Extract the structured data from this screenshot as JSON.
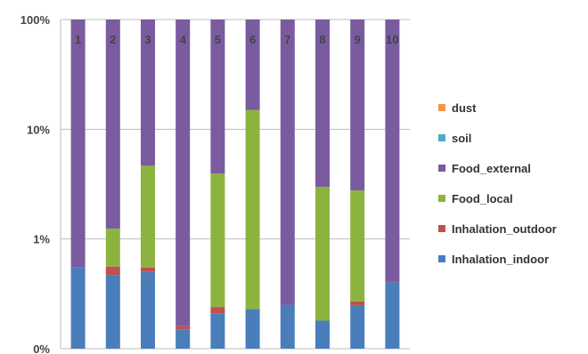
{
  "chart_data": {
    "type": "bar",
    "stacked": true,
    "y_scale": "log",
    "ylim": [
      "0%",
      "100%"
    ],
    "y_ticks": [
      "100%",
      "10%",
      "1%",
      "0%"
    ],
    "grid": true,
    "legend_position": "right",
    "categories": [
      "1",
      "2",
      "3",
      "4",
      "5",
      "6",
      "7",
      "8",
      "9",
      "10"
    ],
    "series": [
      {
        "name": "Inhalation_indoor",
        "color": "#4a7ebb",
        "values": [
          0.55,
          0.47,
          0.5,
          0.15,
          0.21,
          0.23,
          0.25,
          0.18,
          0.25,
          0.4
        ]
      },
      {
        "name": "Inhalation_outdoor",
        "color": "#c0504d",
        "values": [
          0.0,
          0.09,
          0.05,
          0.01,
          0.03,
          0.0,
          0.0,
          0.0,
          0.02,
          0.0
        ]
      },
      {
        "name": "Food_local",
        "color": "#8db33f",
        "values": [
          0.0,
          0.68,
          4.1,
          0.0,
          3.7,
          14.8,
          0.0,
          2.8,
          2.5,
          0.0
        ]
      },
      {
        "name": "Food_external",
        "color": "#7a5ba0",
        "values": [
          99.45,
          98.76,
          95.35,
          99.84,
          96.06,
          84.97,
          99.75,
          97.02,
          97.23,
          99.6
        ]
      },
      {
        "name": "soil",
        "color": "#4bacc6",
        "values": [
          0,
          0,
          0,
          0,
          0,
          0,
          0,
          0,
          0,
          0
        ]
      },
      {
        "name": "dust",
        "color": "#f79646",
        "values": [
          0,
          0,
          0,
          0,
          0,
          0,
          0,
          0,
          0,
          0
        ]
      }
    ],
    "legend_order": [
      "dust",
      "soil",
      "Food_external",
      "Food_local",
      "Inhalation_outdoor",
      "Inhalation_indoor"
    ]
  }
}
